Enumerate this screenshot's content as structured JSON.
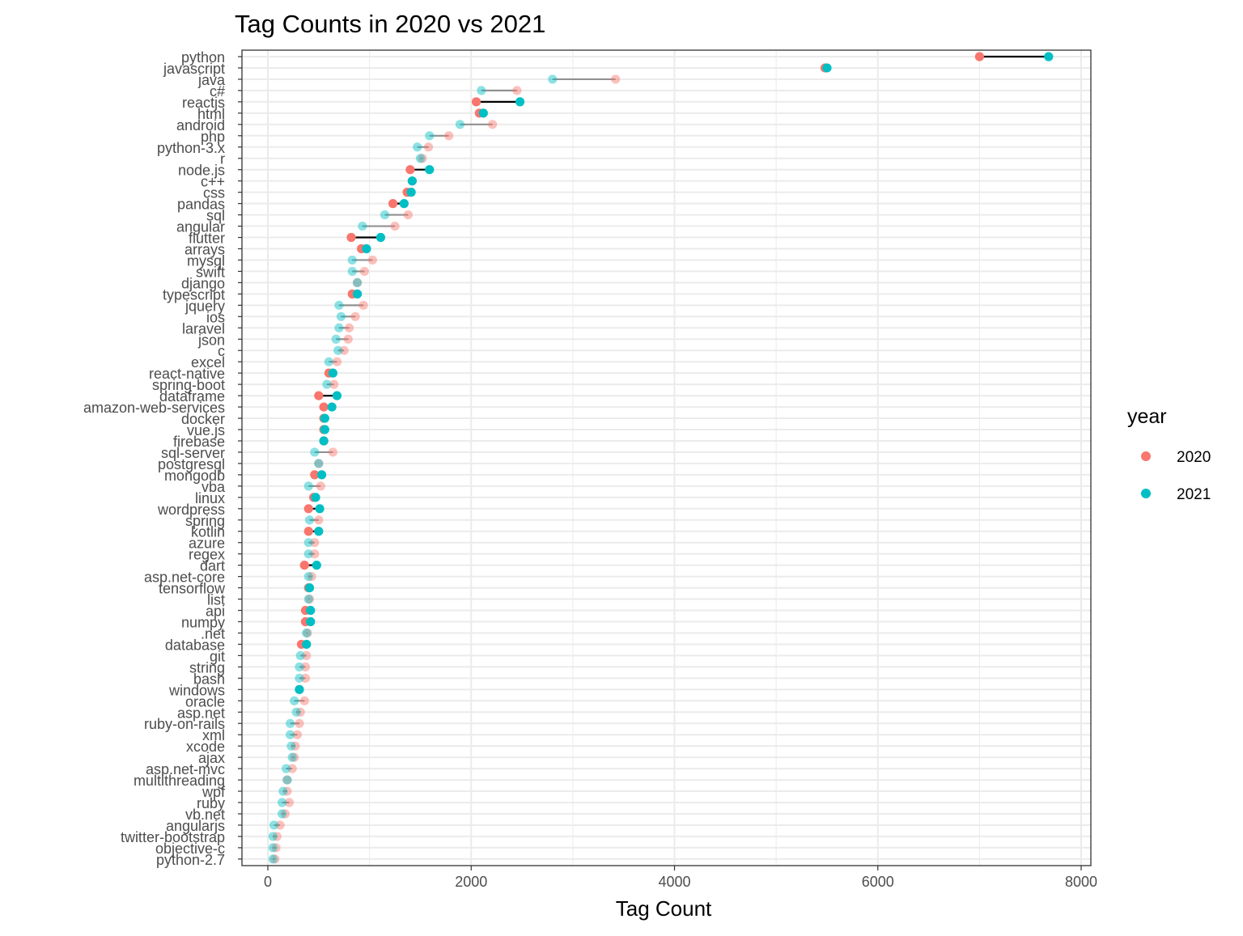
{
  "chart_data": {
    "type": "dumbbell",
    "title": "Tag Counts in 2020 vs 2021",
    "xlabel": "Tag Count",
    "ylabel": "",
    "xlim": [
      -300,
      8050
    ],
    "xticks": [
      "0",
      "2000",
      "4000",
      "6000",
      "8000"
    ],
    "xtick_values": [
      0,
      2000,
      4000,
      6000,
      8000
    ],
    "grid": true,
    "legend": {
      "title": "year",
      "position": "right",
      "entries": [
        {
          "label": "2020",
          "color": "#F8766D"
        },
        {
          "label": "2021",
          "color": "#00BFC4"
        }
      ]
    },
    "series": [
      {
        "name": "2020",
        "color": "#F8766D"
      },
      {
        "name": "2021",
        "color": "#00BFC4"
      }
    ],
    "tags": [
      {
        "tag": "python",
        "y2020": 7000,
        "y2021": 7680,
        "highlight": true
      },
      {
        "tag": "javascript",
        "y2020": 5480,
        "y2021": 5500,
        "highlight": true
      },
      {
        "tag": "java",
        "y2020": 3420,
        "y2021": 2800,
        "highlight": false
      },
      {
        "tag": "c#",
        "y2020": 2450,
        "y2021": 2100,
        "highlight": false
      },
      {
        "tag": "reactjs",
        "y2020": 2050,
        "y2021": 2480,
        "highlight": true
      },
      {
        "tag": "html",
        "y2020": 2080,
        "y2021": 2120,
        "highlight": true
      },
      {
        "tag": "android",
        "y2020": 2210,
        "y2021": 1890,
        "highlight": false
      },
      {
        "tag": "php",
        "y2020": 1780,
        "y2021": 1590,
        "highlight": false
      },
      {
        "tag": "python-3.x",
        "y2020": 1580,
        "y2021": 1470,
        "highlight": false
      },
      {
        "tag": "r",
        "y2020": 1520,
        "y2021": 1500,
        "highlight": false
      },
      {
        "tag": "node.js",
        "y2020": 1400,
        "y2021": 1590,
        "highlight": true
      },
      {
        "tag": "c++",
        "y2020": 1420,
        "y2021": 1420,
        "highlight": true
      },
      {
        "tag": "css",
        "y2020": 1370,
        "y2021": 1410,
        "highlight": true
      },
      {
        "tag": "pandas",
        "y2020": 1230,
        "y2021": 1340,
        "highlight": true
      },
      {
        "tag": "sql",
        "y2020": 1380,
        "y2021": 1150,
        "highlight": false
      },
      {
        "tag": "angular",
        "y2020": 1250,
        "y2021": 930,
        "highlight": false
      },
      {
        "tag": "flutter",
        "y2020": 820,
        "y2021": 1110,
        "highlight": true
      },
      {
        "tag": "arrays",
        "y2020": 920,
        "y2021": 970,
        "highlight": true
      },
      {
        "tag": "mysql",
        "y2020": 1030,
        "y2021": 830,
        "highlight": false
      },
      {
        "tag": "swift",
        "y2020": 950,
        "y2021": 830,
        "highlight": false
      },
      {
        "tag": "django",
        "y2020": 880,
        "y2021": 880,
        "highlight": false
      },
      {
        "tag": "typescript",
        "y2020": 830,
        "y2021": 880,
        "highlight": true
      },
      {
        "tag": "jquery",
        "y2020": 940,
        "y2021": 700,
        "highlight": false
      },
      {
        "tag": "ios",
        "y2020": 860,
        "y2021": 720,
        "highlight": false
      },
      {
        "tag": "laravel",
        "y2020": 800,
        "y2021": 700,
        "highlight": false
      },
      {
        "tag": "json",
        "y2020": 790,
        "y2021": 670,
        "highlight": false
      },
      {
        "tag": "c",
        "y2020": 750,
        "y2021": 690,
        "highlight": false
      },
      {
        "tag": "excel",
        "y2020": 680,
        "y2021": 600,
        "highlight": false
      },
      {
        "tag": "react-native",
        "y2020": 600,
        "y2021": 640,
        "highlight": true
      },
      {
        "tag": "spring-boot",
        "y2020": 650,
        "y2021": 580,
        "highlight": false
      },
      {
        "tag": "dataframe",
        "y2020": 500,
        "y2021": 680,
        "highlight": true
      },
      {
        "tag": "amazon-web-services",
        "y2020": 550,
        "y2021": 630,
        "highlight": true
      },
      {
        "tag": "docker",
        "y2020": 550,
        "y2021": 560,
        "highlight": true
      },
      {
        "tag": "vue.js",
        "y2020": 550,
        "y2021": 560,
        "highlight": true
      },
      {
        "tag": "firebase",
        "y2020": 550,
        "y2021": 550,
        "highlight": true
      },
      {
        "tag": "sql-server",
        "y2020": 640,
        "y2021": 460,
        "highlight": false
      },
      {
        "tag": "postgresql",
        "y2020": 500,
        "y2021": 500,
        "highlight": false
      },
      {
        "tag": "mongodb",
        "y2020": 460,
        "y2021": 530,
        "highlight": true
      },
      {
        "tag": "vba",
        "y2020": 520,
        "y2021": 400,
        "highlight": false
      },
      {
        "tag": "linux",
        "y2020": 450,
        "y2021": 470,
        "highlight": true
      },
      {
        "tag": "wordpress",
        "y2020": 400,
        "y2021": 510,
        "highlight": true
      },
      {
        "tag": "spring",
        "y2020": 500,
        "y2021": 410,
        "highlight": false
      },
      {
        "tag": "kotlin",
        "y2020": 400,
        "y2021": 500,
        "highlight": true
      },
      {
        "tag": "azure",
        "y2020": 460,
        "y2021": 400,
        "highlight": false
      },
      {
        "tag": "regex",
        "y2020": 460,
        "y2021": 400,
        "highlight": false
      },
      {
        "tag": "dart",
        "y2020": 360,
        "y2021": 480,
        "highlight": true
      },
      {
        "tag": "asp.net-core",
        "y2020": 430,
        "y2021": 400,
        "highlight": false
      },
      {
        "tag": "tensorflow",
        "y2020": 400,
        "y2021": 410,
        "highlight": true
      },
      {
        "tag": "list",
        "y2020": 410,
        "y2021": 400,
        "highlight": false
      },
      {
        "tag": "api",
        "y2020": 370,
        "y2021": 420,
        "highlight": true
      },
      {
        "tag": "numpy",
        "y2020": 370,
        "y2021": 420,
        "highlight": true
      },
      {
        "tag": ".net",
        "y2020": 390,
        "y2021": 380,
        "highlight": false
      },
      {
        "tag": "database",
        "y2020": 330,
        "y2021": 380,
        "highlight": true
      },
      {
        "tag": "git",
        "y2020": 380,
        "y2021": 320,
        "highlight": false
      },
      {
        "tag": "string",
        "y2020": 370,
        "y2021": 310,
        "highlight": false
      },
      {
        "tag": "bash",
        "y2020": 370,
        "y2021": 310,
        "highlight": false
      },
      {
        "tag": "windows",
        "y2020": 310,
        "y2021": 310,
        "highlight": true
      },
      {
        "tag": "oracle",
        "y2020": 360,
        "y2021": 260,
        "highlight": false
      },
      {
        "tag": "asp.net",
        "y2020": 320,
        "y2021": 280,
        "highlight": false
      },
      {
        "tag": "ruby-on-rails",
        "y2020": 310,
        "y2021": 220,
        "highlight": false
      },
      {
        "tag": "xml",
        "y2020": 290,
        "y2021": 220,
        "highlight": false
      },
      {
        "tag": "xcode",
        "y2020": 270,
        "y2021": 230,
        "highlight": false
      },
      {
        "tag": "ajax",
        "y2020": 260,
        "y2021": 240,
        "highlight": false
      },
      {
        "tag": "asp.net-mvc",
        "y2020": 240,
        "y2021": 180,
        "highlight": false
      },
      {
        "tag": "multithreading",
        "y2020": 190,
        "y2021": 190,
        "highlight": false
      },
      {
        "tag": "wpf",
        "y2020": 190,
        "y2021": 150,
        "highlight": false
      },
      {
        "tag": "ruby",
        "y2020": 210,
        "y2021": 140,
        "highlight": false
      },
      {
        "tag": "vb.net",
        "y2020": 170,
        "y2021": 140,
        "highlight": false
      },
      {
        "tag": "angularjs",
        "y2020": 120,
        "y2021": 60,
        "highlight": false
      },
      {
        "tag": "twitter-bootstrap",
        "y2020": 90,
        "y2021": 50,
        "highlight": false
      },
      {
        "tag": "objective-c",
        "y2020": 80,
        "y2021": 50,
        "highlight": false
      },
      {
        "tag": "python-2.7",
        "y2020": 70,
        "y2021": 50,
        "highlight": false
      }
    ]
  }
}
